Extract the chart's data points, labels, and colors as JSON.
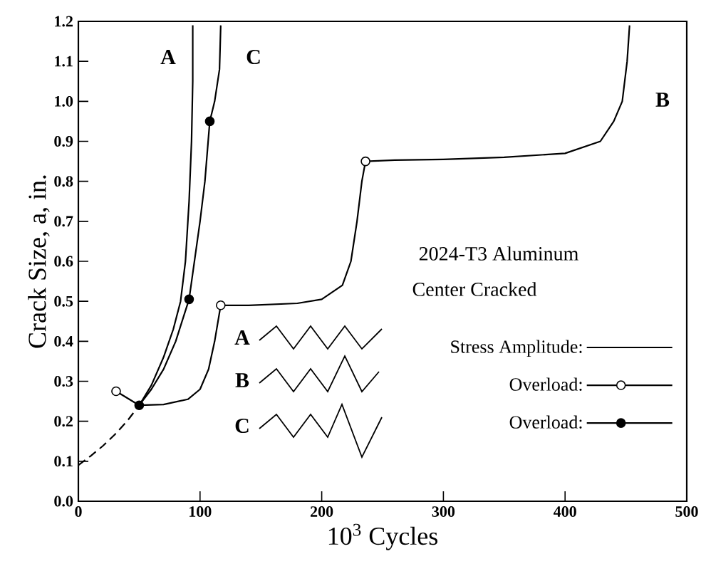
{
  "chart_data": {
    "type": "line",
    "xlabel": "10$^{3}$ Cycles",
    "ylabel": "Crack Size, a, in.",
    "xlim": [
      0,
      500
    ],
    "xticks": [
      0,
      100,
      200,
      300,
      400,
      500
    ],
    "ylim": [
      0,
      1.2
    ],
    "yticks": [
      {
        "value": 0,
        "label": "0.0"
      },
      0.1,
      0.2,
      0.3,
      0.4,
      0.5,
      0.6,
      0.7,
      0.8,
      0.9,
      {
        "value": 1,
        "label": "1.0"
      },
      1.1,
      1.2
    ],
    "legend": "bottom right",
    "series": [
      {
        "color": "#000000",
        "line_style": "dashed",
        "x": [
          0,
          10,
          20,
          30,
          40,
          50
        ],
        "values": [
          0.09,
          0.113,
          0.138,
          0.167,
          0.2,
          0.24
        ]
      },
      {
        "name": "Stress Amplitude:",
        "color": "#000000",
        "x": [
          50,
          60,
          70,
          78,
          84,
          88,
          91,
          93,
          94,
          94
        ],
        "values": [
          0.24,
          0.29,
          0.36,
          0.43,
          0.5,
          0.6,
          0.75,
          0.9,
          1.05,
          1.19
        ]
      },
      {
        "color": "#000000",
        "x": [
          50,
          60,
          70,
          80,
          91,
          100,
          104,
          108,
          112,
          116,
          117
        ],
        "values": [
          0.24,
          0.28,
          0.33,
          0.4,
          0.505,
          0.7,
          0.8,
          0.95,
          1.0,
          1.08,
          1.19
        ]
      },
      {
        "color": "#000000",
        "x": [
          31,
          50,
          70,
          90,
          100,
          107,
          112,
          117,
          140,
          180,
          200,
          217,
          224,
          229,
          233,
          236,
          260,
          300,
          350,
          400,
          429,
          440,
          447,
          451,
          453
        ],
        "values": [
          0.275,
          0.24,
          0.242,
          0.255,
          0.28,
          0.33,
          0.4,
          0.49,
          0.49,
          0.495,
          0.505,
          0.54,
          0.6,
          0.7,
          0.8,
          0.85,
          0.853,
          0.855,
          0.86,
          0.87,
          0.9,
          0.95,
          1.0,
          1.1,
          1.19
        ]
      },
      {
        "name": "Overload:",
        "type": "scatter",
        "marker": "circle",
        "color": "#ffffff",
        "x": [
          31,
          117,
          236
        ],
        "values": [
          0.275,
          0.49,
          0.85
        ]
      },
      {
        "name": "Overload:",
        "type": "scatter",
        "marker": "circle",
        "color": "#000000",
        "x": [
          50,
          91,
          108
        ],
        "values": [
          0.24,
          0.505,
          0.95
        ]
      }
    ],
    "annotations": [
      "A",
      "C",
      "B",
      "2024-T3 Aluminum",
      "Center Cracked",
      "A",
      "B",
      "C"
    ]
  }
}
